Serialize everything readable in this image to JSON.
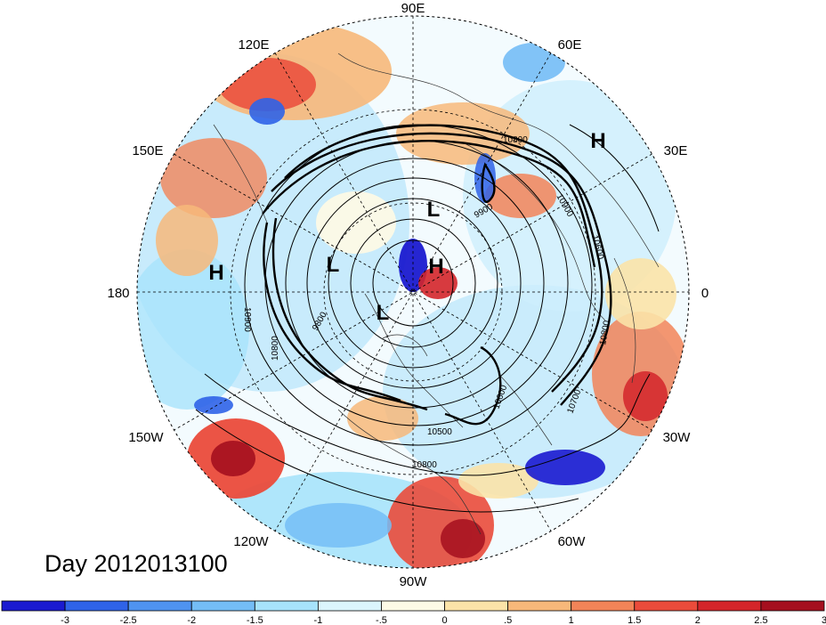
{
  "title": "Day 2012013100",
  "longitude_labels": [
    {
      "name": "lon-90e",
      "text": "90E"
    },
    {
      "name": "lon-60e",
      "text": "60E"
    },
    {
      "name": "lon-30e",
      "text": "30E"
    },
    {
      "name": "lon-0",
      "text": "0"
    },
    {
      "name": "lon-30w",
      "text": "30W"
    },
    {
      "name": "lon-60w",
      "text": "60W"
    },
    {
      "name": "lon-90w",
      "text": "90W"
    },
    {
      "name": "lon-120w",
      "text": "120W"
    },
    {
      "name": "lon-150w",
      "text": "150W"
    },
    {
      "name": "lon-180",
      "text": "180"
    },
    {
      "name": "lon-150e",
      "text": "150E"
    },
    {
      "name": "lon-120e",
      "text": "120E"
    }
  ],
  "pressure_markers": [
    {
      "name": "high-marker-europe",
      "text": "H"
    },
    {
      "name": "high-marker-pacific",
      "text": "H"
    },
    {
      "name": "high-marker-pole",
      "text": "H"
    },
    {
      "name": "low-marker-siberia",
      "text": "L"
    },
    {
      "name": "low-marker-beaufort",
      "text": "L"
    },
    {
      "name": "low-marker-canada",
      "text": "L"
    }
  ],
  "contour_labels": [
    "10800",
    "10900",
    "10600",
    "9800",
    "10900",
    "9900",
    "10800",
    "10800",
    "10700",
    "10500",
    "10800",
    "10600"
  ],
  "colorbar": {
    "labels": [
      "-3",
      "-2.5",
      "-2",
      "-1.5",
      "-1",
      "-.5",
      "0",
      ".5",
      "1",
      "1.5",
      "2",
      "2.5",
      "3"
    ],
    "colors": [
      "#1a1ad0",
      "#2f63e8",
      "#4f93f0",
      "#74bdf6",
      "#a7e3fb",
      "#dbf5fd",
      "#fdfae6",
      "#fbe3a8",
      "#f7b87a",
      "#f28458",
      "#ea4b3b",
      "#d4252a",
      "#a50f1e"
    ]
  }
}
